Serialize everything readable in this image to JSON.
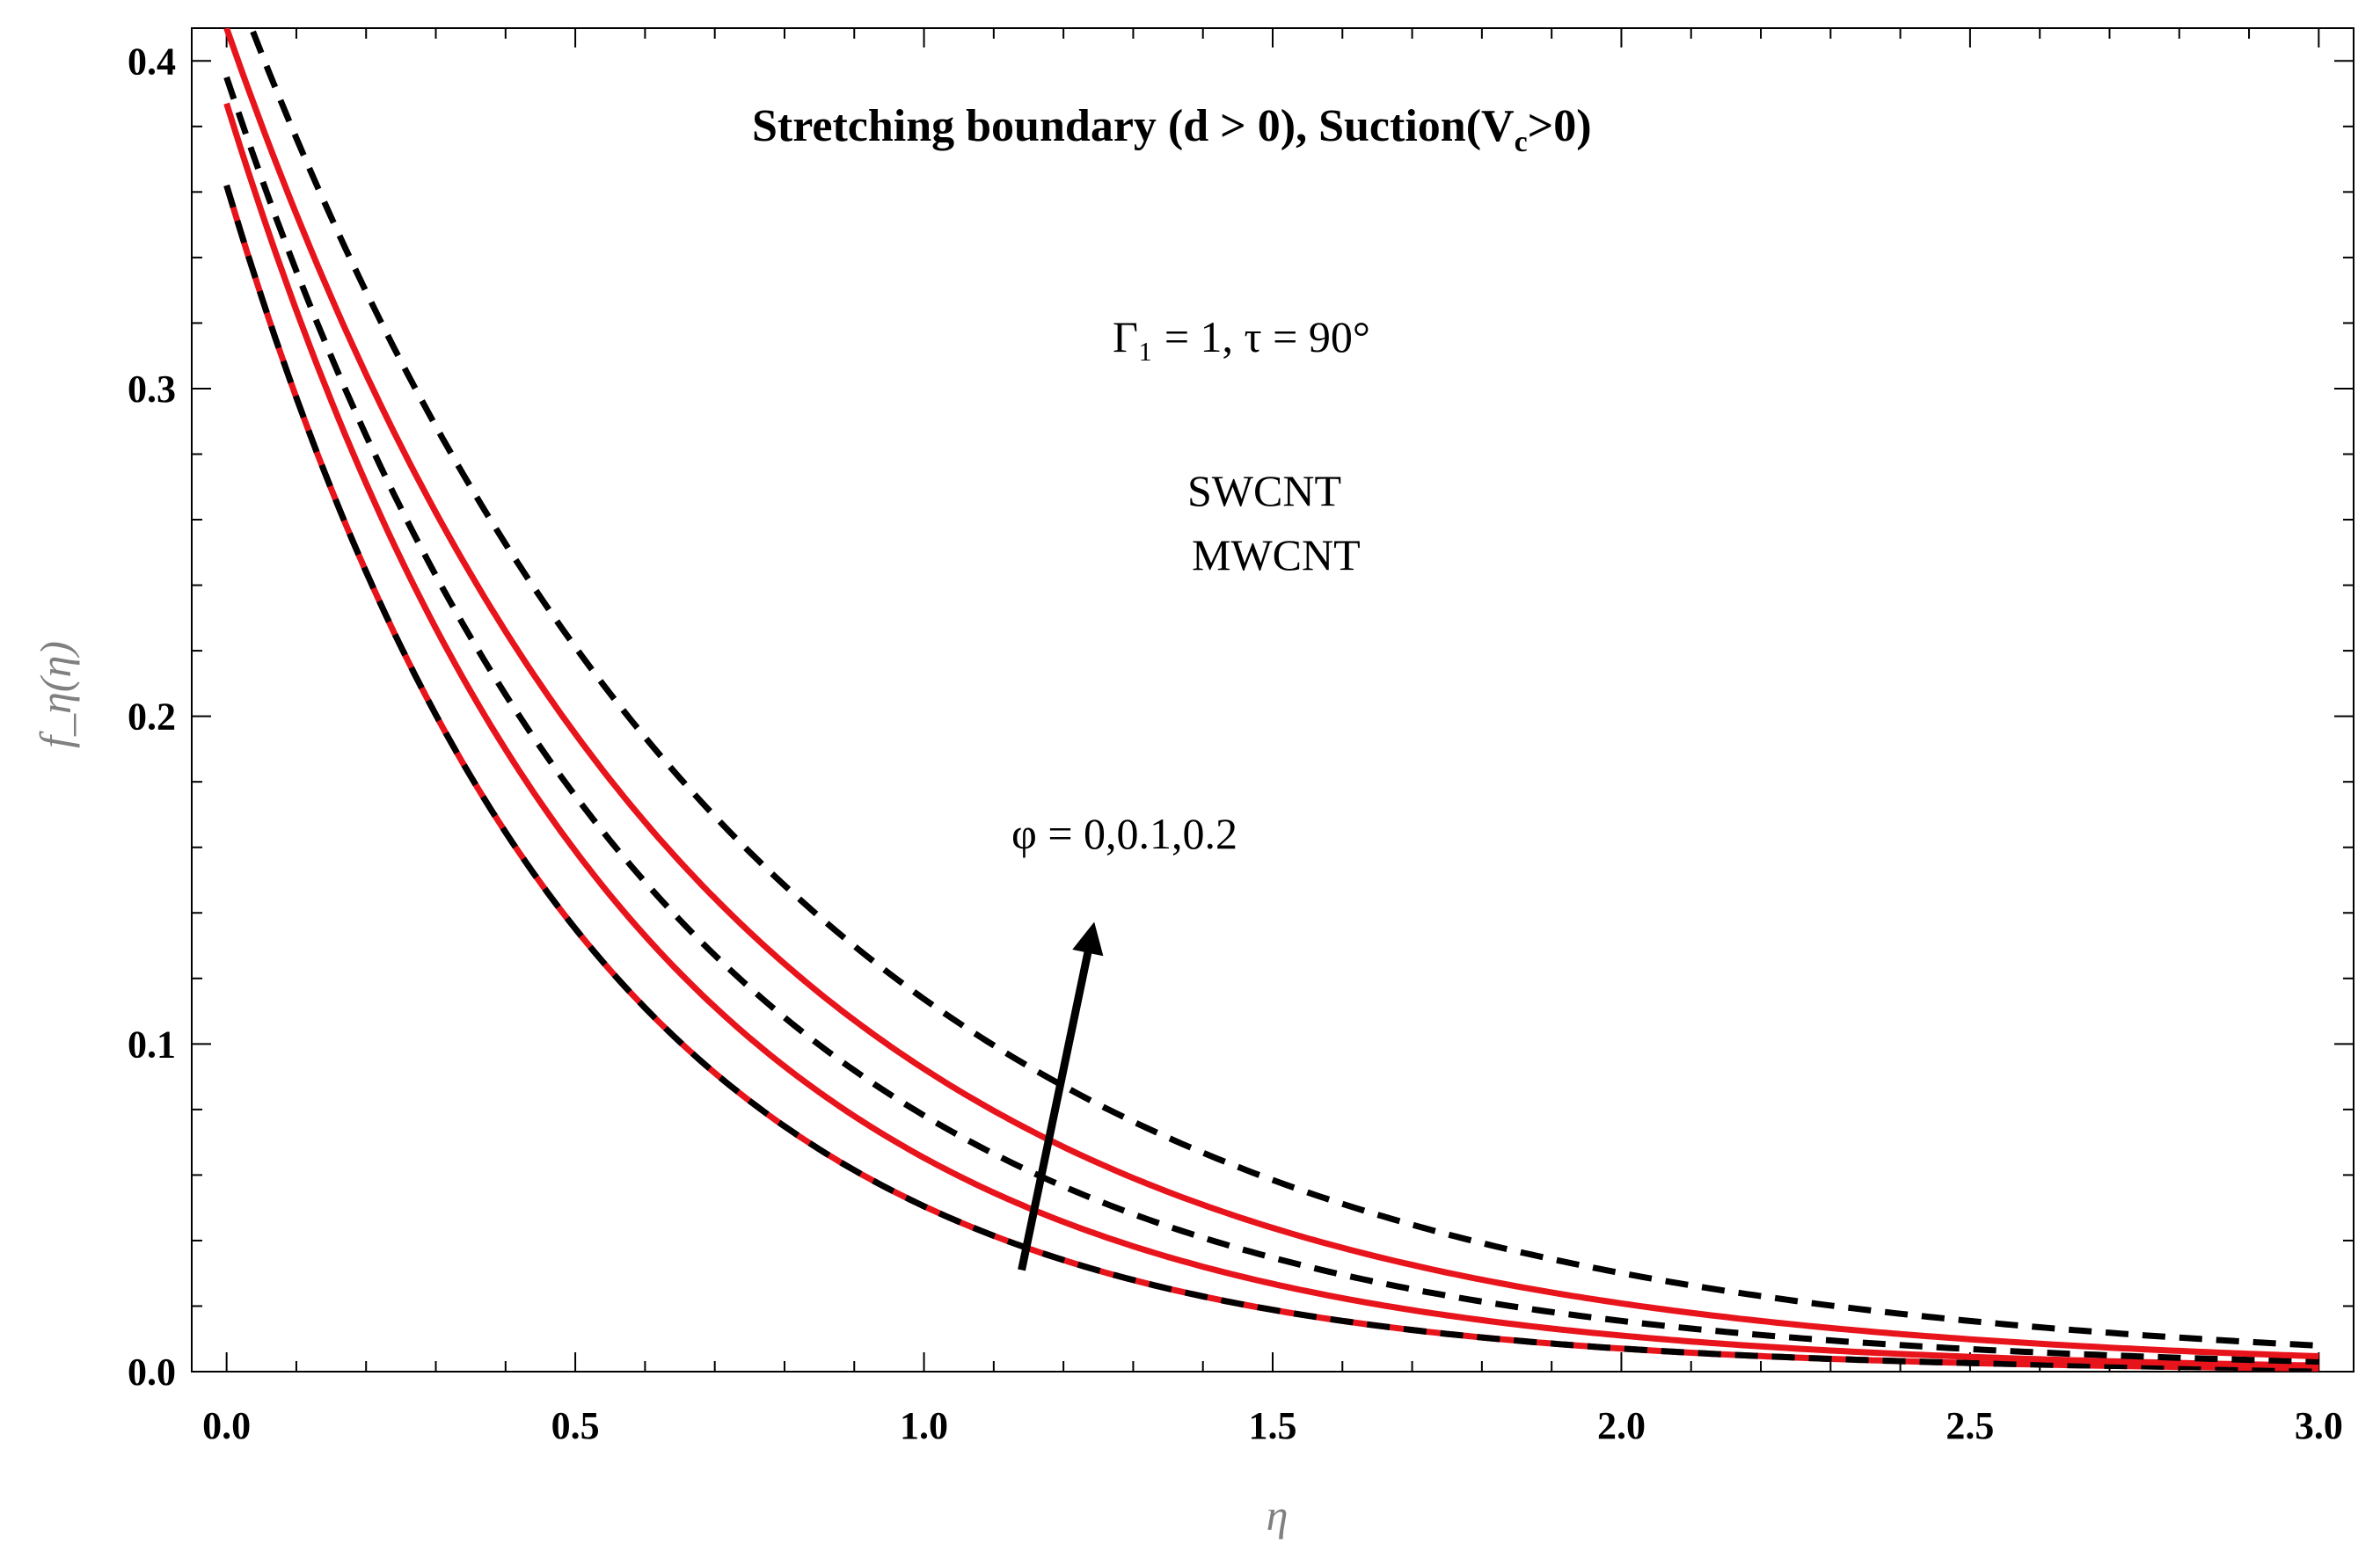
{
  "chart_data": {
    "type": "line",
    "title": "",
    "xlabel": "η",
    "ylabel": "f_η(η)",
    "xlim": [
      -0.05,
      3.05
    ],
    "ylim": [
      0,
      0.41
    ],
    "x_ticks": [
      "0.0",
      "0.5",
      "1.0",
      "1.5",
      "2.0",
      "2.5",
      "3.0"
    ],
    "y_ticks": [
      "0.0",
      "0.1",
      "0.2",
      "0.3",
      "0.4"
    ],
    "x_tick_values": [
      0,
      0.5,
      1.0,
      1.5,
      2.0,
      2.5,
      3.0
    ],
    "y_tick_values": [
      0,
      0.1,
      0.2,
      0.3,
      0.4
    ],
    "annotations": {
      "heading": "Stretching boundary (d > 0),  Suction(V",
      "heading_sub": "c",
      "heading_end": ">0)",
      "params": "Γ₁ = 1, τ = 90°",
      "legend_swcnt": "SWCNT",
      "legend_mwcnt": "MWCNT",
      "phi_label": "φ =  0,0.1,0.2"
    },
    "colors": {
      "SWCNT": "#e8141c",
      "MWCNT": "#000000"
    },
    "arrow": {
      "from": [
        1.14,
        0.031
      ],
      "to": [
        1.24,
        0.133
      ]
    },
    "series": [
      {
        "group": "SWCNT",
        "phi": 0,
        "style": "solid",
        "f0": 0.362,
        "k": 1.97
      },
      {
        "group": "MWCNT",
        "phi": 0,
        "style": "dashed",
        "f0": 0.362,
        "k": 1.97
      },
      {
        "group": "SWCNT",
        "phi": 0.1,
        "style": "solid",
        "f0": 0.387,
        "k": 1.78
      },
      {
        "group": "MWCNT",
        "phi": 0.1,
        "style": "dashed",
        "f0": 0.395,
        "k": 1.62
      },
      {
        "group": "SWCNT",
        "phi": 0.2,
        "style": "solid",
        "f0": 0.41,
        "k": 1.49
      },
      {
        "group": "MWCNT",
        "phi": 0.2,
        "style": "dashed",
        "f0": 0.43,
        "k": 1.33
      }
    ]
  }
}
